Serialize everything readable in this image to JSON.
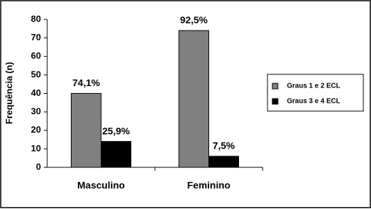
{
  "chart_data": {
    "type": "bar",
    "y_label": "Frequência (n)",
    "categories": [
      "Masculino",
      "Feminino"
    ],
    "series": [
      {
        "name": "Graus 1 e 2 ECL",
        "color": "#808080",
        "values": [
          40,
          74
        ],
        "percent_labels": [
          "74,1%",
          "92,5%"
        ]
      },
      {
        "name": "Graus 3 e 4 ECL",
        "color": "#000000",
        "values": [
          14,
          6
        ],
        "percent_labels": [
          "25,9%",
          "7,5%"
        ]
      }
    ],
    "ylim": [
      0,
      80
    ],
    "yticks": [
      0,
      10,
      20,
      30,
      40,
      50,
      60,
      70,
      80
    ],
    "grid": false,
    "legend": "right"
  }
}
